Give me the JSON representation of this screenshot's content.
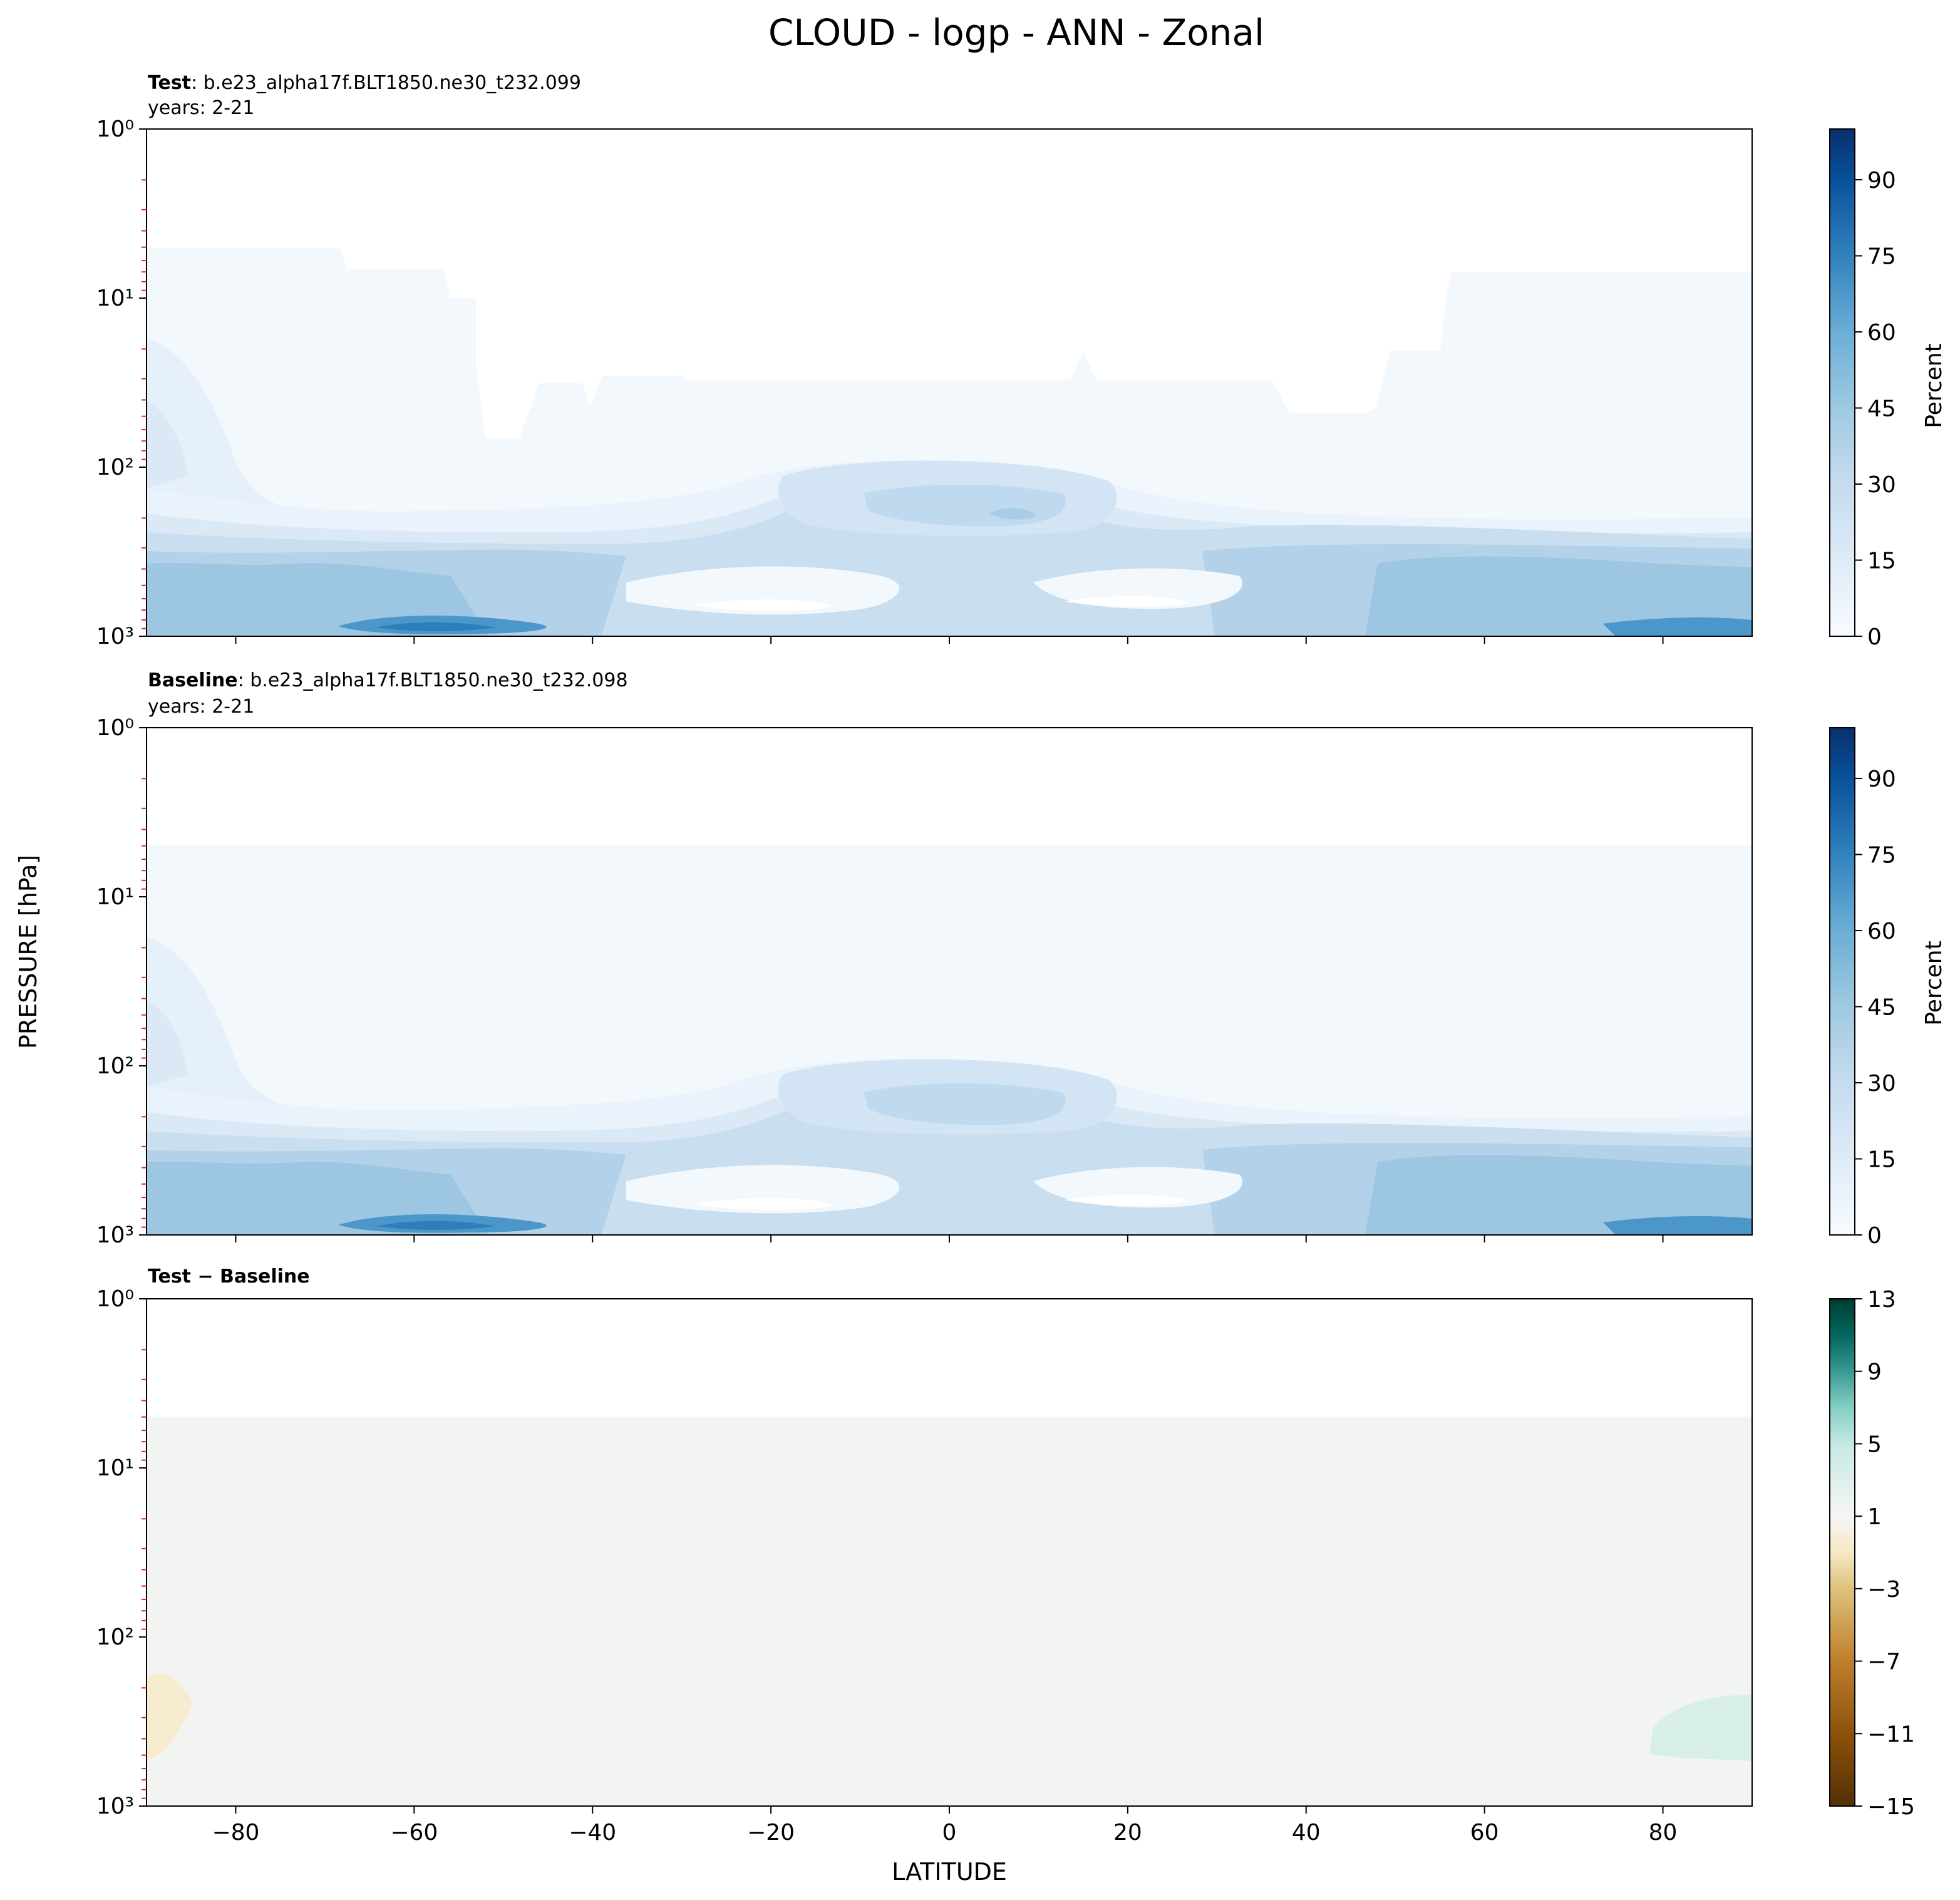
{
  "title": "CLOUD - logp - ANN - Zonal",
  "ylabel_shared": "PRESSURE [hPa]",
  "xlabel": "LATITUDE",
  "chart_data": [
    {
      "type": "heatmap",
      "panel": "test",
      "title_bold": "Test",
      "title_rest": ": b.e23_alpha17f.BLT1850.ne30_t232.099",
      "subtitle": "years: 2-21",
      "x_range": [
        -90,
        90
      ],
      "y_range_hpa": [
        1000,
        1
      ],
      "y_scale": "log",
      "colorbar": {
        "label": "Percent",
        "ticks": [
          0,
          15,
          30,
          45,
          60,
          75,
          90
        ],
        "range": [
          0,
          100
        ],
        "colormap": "Blues"
      }
    },
    {
      "type": "heatmap",
      "panel": "baseline",
      "title_bold": "Baseline",
      "title_rest": ": b.e23_alpha17f.BLT1850.ne30_t232.098",
      "subtitle": "years: 2-21",
      "x_range": [
        -90,
        90
      ],
      "y_range_hpa": [
        1000,
        1
      ],
      "y_scale": "log",
      "colorbar": {
        "label": "Percent",
        "ticks": [
          0,
          15,
          30,
          45,
          60,
          75,
          90
        ],
        "range": [
          0,
          100
        ],
        "colormap": "Blues"
      }
    },
    {
      "type": "heatmap",
      "panel": "difference",
      "title_bold": "Test − Baseline",
      "x_range": [
        -90,
        90
      ],
      "y_range_hpa": [
        1000,
        1
      ],
      "y_scale": "log",
      "colorbar": {
        "label": "",
        "ticks": [
          "13",
          "9",
          "5",
          "1",
          "−3",
          "−7",
          "−11",
          "−15"
        ],
        "range": [
          -15,
          13
        ],
        "colormap": "BrBG"
      }
    }
  ],
  "y_tick_labels": [
    "10⁰",
    "10¹",
    "10²",
    "10³"
  ],
  "x_tick_labels": [
    "−80",
    "−60",
    "−40",
    "−20",
    "0",
    "20",
    "40",
    "60",
    "80"
  ],
  "x_tick_values": [
    -80,
    -60,
    -40,
    -20,
    0,
    20,
    40,
    60,
    80
  ],
  "colors": {
    "blues": [
      "#f7fbff",
      "#e3eef9",
      "#cfe1f2",
      "#b5d4e9",
      "#93c3df",
      "#6daed5",
      "#4b97c9",
      "#2f7ebc",
      "#1864aa",
      "#0a4a90",
      "#08306b"
    ],
    "brbg": [
      "#f1f3f2",
      "#f6e8c6",
      "#d8f0ea"
    ],
    "minor_tick": "#d62728"
  }
}
